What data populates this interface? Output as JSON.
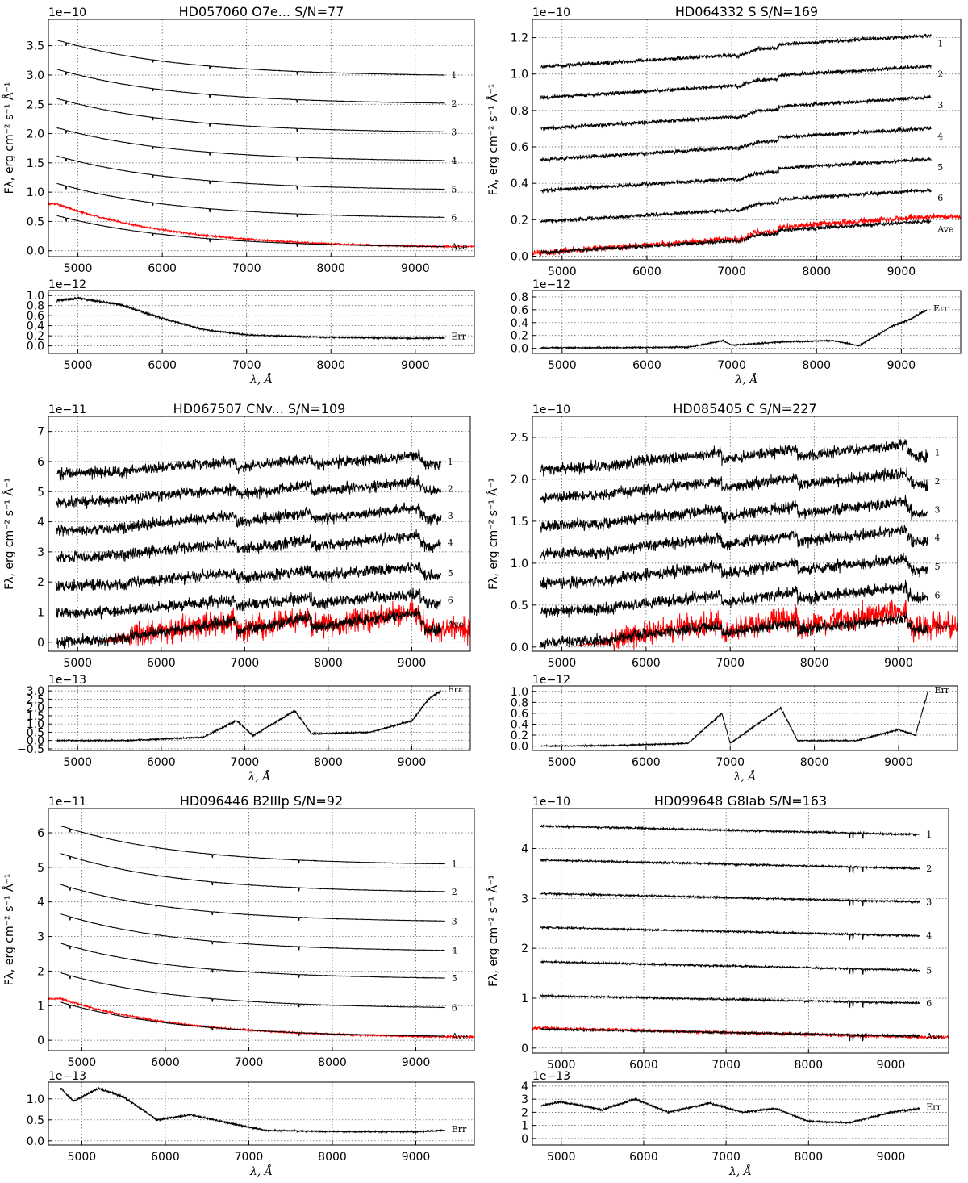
{
  "figure": {
    "xlabel": "λ, Å",
    "ylabel": "Fλ, erg cm⁻² s⁻¹ Å⁻¹"
  },
  "chart_data": [
    {
      "type": "line",
      "title": "HD057060  O7e...  S/N=77",
      "xlim": [
        4650,
        9700
      ],
      "x_ticks": [
        5000,
        6000,
        7000,
        8000,
        9000
      ],
      "main": {
        "multiplier": "1e−10",
        "ylim": [
          -0.1,
          3.95
        ],
        "y_ticks": [
          0.0,
          0.5,
          1.0,
          1.5,
          2.0,
          2.5,
          3.0,
          3.5
        ],
        "y_tick_labels": [
          "0.0",
          "0.5",
          "1.0",
          "1.5",
          "2.0",
          "2.5",
          "3.0",
          "3.5"
        ],
        "shape": "hot",
        "x_start": 4750,
        "x_end": 9350,
        "labels": [
          "1",
          "2",
          "3",
          "4",
          "5",
          "6",
          "Ave"
        ],
        "series_start": [
          3.6,
          3.1,
          2.6,
          2.1,
          1.62,
          1.15,
          0.6
        ],
        "series_end": [
          3.0,
          2.52,
          2.03,
          1.54,
          1.05,
          0.57,
          0.07
        ],
        "red": {
          "name": "Ave",
          "start": 0.8,
          "end": 0.07,
          "x_start": 4650,
          "x_end": 9700
        }
      },
      "err": {
        "multiplier": "1e−12",
        "label": "Err",
        "ylim": [
          -0.15,
          1.1
        ],
        "y_ticks": [
          0.0,
          0.2,
          0.4,
          0.6,
          0.8,
          1.0
        ],
        "y_tick_labels": [
          "0.0",
          "0.2",
          "0.4",
          "0.6",
          "0.8",
          "1.0"
        ],
        "x": [
          4750,
          5000,
          5500,
          6000,
          6500,
          7000,
          7500,
          8000,
          8500,
          9000,
          9350
        ],
        "values": [
          0.9,
          0.95,
          0.82,
          0.55,
          0.32,
          0.22,
          0.19,
          0.17,
          0.16,
          0.15,
          0.16
        ]
      }
    },
    {
      "type": "line",
      "title": "HD064332  S  S/N=169",
      "xlim": [
        4650,
        9700
      ],
      "x_ticks": [
        5000,
        6000,
        7000,
        8000,
        9000
      ],
      "main": {
        "multiplier": "1e−10",
        "ylim": [
          -0.02,
          1.3
        ],
        "y_ticks": [
          0.0,
          0.2,
          0.4,
          0.6,
          0.8,
          1.0,
          1.2
        ],
        "y_tick_labels": [
          "0.0",
          "0.2",
          "0.4",
          "0.6",
          "0.8",
          "1.0",
          "1.2"
        ],
        "shape": "cool",
        "x_start": 4750,
        "x_end": 9350,
        "labels": [
          "1",
          "2",
          "3",
          "4",
          "5",
          "6",
          "Ave"
        ],
        "series_start": [
          1.04,
          0.87,
          0.7,
          0.53,
          0.36,
          0.19,
          0.02
        ],
        "series_end": [
          1.17,
          1.0,
          0.83,
          0.66,
          0.49,
          0.32,
          0.15
        ],
        "red": {
          "name": "Ave",
          "start": 0.02,
          "end": 0.17,
          "x_start": 4650,
          "x_end": 9700
        }
      },
      "err": {
        "multiplier": "1e−12",
        "label": "Err",
        "ylim": [
          -0.08,
          0.9
        ],
        "y_ticks": [
          0.0,
          0.2,
          0.4,
          0.6,
          0.8
        ],
        "y_tick_labels": [
          "0.0",
          "0.2",
          "0.4",
          "0.6",
          "0.8"
        ],
        "x": [
          4750,
          5500,
          6500,
          6900,
          7000,
          7600,
          8200,
          8500,
          8900,
          9100,
          9300
        ],
        "values": [
          0.01,
          0.01,
          0.02,
          0.12,
          0.05,
          0.1,
          0.12,
          0.04,
          0.35,
          0.45,
          0.6
        ]
      }
    },
    {
      "type": "line",
      "title": "HD067507  CNv...  S/N=109",
      "xlim": [
        4650,
        9700
      ],
      "x_ticks": [
        5000,
        6000,
        7000,
        8000,
        9000
      ],
      "main": {
        "multiplier": "1e−11",
        "ylim": [
          -0.3,
          7.5
        ],
        "y_ticks": [
          0,
          1,
          2,
          3,
          4,
          5,
          6,
          7
        ],
        "y_tick_labels": [
          "0",
          "1",
          "2",
          "3",
          "4",
          "5",
          "6",
          "7"
        ],
        "shape": "carbon",
        "x_start": 4750,
        "x_end": 9350,
        "labels": [
          "1",
          "2",
          "3",
          "4",
          "5",
          "6",
          "Ave"
        ],
        "series_start": [
          5.6,
          4.65,
          3.7,
          2.8,
          1.85,
          0.95,
          0.0
        ],
        "series_end": [
          6.0,
          5.1,
          4.2,
          3.3,
          2.3,
          1.4,
          0.6
        ],
        "red": {
          "name": "Ave",
          "start": 0.0,
          "end": 0.6,
          "x_start": 5200,
          "x_end": 9700
        }
      },
      "err": {
        "multiplier": "1e−13",
        "label": "Err",
        "ylim": [
          -0.6,
          3.3
        ],
        "y_ticks": [
          -0.5,
          0.0,
          0.5,
          1.0,
          1.5,
          2.0,
          2.5,
          3.0
        ],
        "y_tick_labels": [
          "−0.5",
          "0.0",
          "0.5",
          "1.0",
          "1.5",
          "2.0",
          "2.5",
          "3.0"
        ],
        "x": [
          4750,
          5600,
          6500,
          6900,
          7100,
          7600,
          7800,
          8500,
          9000,
          9200,
          9350
        ],
        "values": [
          0.0,
          0.0,
          0.2,
          1.2,
          0.3,
          1.8,
          0.4,
          0.5,
          1.2,
          2.5,
          3.0
        ]
      }
    },
    {
      "type": "line",
      "title": "HD085405  C  S/N=227",
      "xlim": [
        4650,
        9700
      ],
      "x_ticks": [
        5000,
        6000,
        7000,
        8000,
        9000
      ],
      "main": {
        "multiplier": "1e−10",
        "ylim": [
          -0.05,
          2.75
        ],
        "y_ticks": [
          0.0,
          0.5,
          1.0,
          1.5,
          2.0,
          2.5
        ],
        "y_tick_labels": [
          "0.0",
          "0.5",
          "1.0",
          "1.5",
          "2.0",
          "2.5"
        ],
        "shape": "carbon",
        "x_start": 4750,
        "x_end": 9350,
        "labels": [
          "1",
          "2",
          "3",
          "4",
          "5",
          "6",
          "Ave"
        ],
        "series_start": [
          2.12,
          1.78,
          1.44,
          1.1,
          0.76,
          0.42,
          0.05
        ],
        "series_end": [
          2.32,
          1.98,
          1.64,
          1.3,
          0.96,
          0.62,
          0.25
        ],
        "red": {
          "name": "Ave",
          "start": 0.02,
          "end": 0.3,
          "x_start": 5200,
          "x_end": 9700
        }
      },
      "err": {
        "multiplier": "1e−12",
        "label": "Err",
        "ylim": [
          -0.08,
          1.1
        ],
        "y_ticks": [
          0.0,
          0.2,
          0.4,
          0.6,
          0.8,
          1.0
        ],
        "y_tick_labels": [
          "0.0",
          "0.2",
          "0.4",
          "0.6",
          "0.8",
          "1.0"
        ],
        "x": [
          4750,
          5600,
          6500,
          6900,
          7000,
          7600,
          7800,
          8500,
          9000,
          9200,
          9350
        ],
        "values": [
          0.0,
          0.01,
          0.05,
          0.6,
          0.05,
          0.7,
          0.1,
          0.1,
          0.3,
          0.2,
          1.0
        ]
      }
    },
    {
      "type": "line",
      "title": "HD096446  B2IIIp  S/N=92",
      "xlim": [
        4600,
        9700
      ],
      "x_ticks": [
        5000,
        6000,
        7000,
        8000,
        9000
      ],
      "main": {
        "multiplier": "1e−11",
        "ylim": [
          -0.3,
          6.7
        ],
        "y_ticks": [
          0,
          1,
          2,
          3,
          4,
          5,
          6
        ],
        "y_tick_labels": [
          "0",
          "1",
          "2",
          "3",
          "4",
          "5",
          "6"
        ],
        "shape": "hot",
        "x_start": 4750,
        "x_end": 9350,
        "labels": [
          "1",
          "2",
          "3",
          "4",
          "5",
          "6",
          "Ave"
        ],
        "series_start": [
          6.2,
          5.4,
          4.5,
          3.65,
          2.8,
          1.95,
          1.1
        ],
        "series_end": [
          5.1,
          4.3,
          3.45,
          2.6,
          1.8,
          0.95,
          0.12
        ],
        "red": {
          "name": "Ave",
          "start": 1.2,
          "end": 0.1,
          "x_start": 4600,
          "x_end": 9700
        }
      },
      "err": {
        "multiplier": "1e−13",
        "label": "Err",
        "ylim": [
          -0.1,
          1.4
        ],
        "y_ticks": [
          0.0,
          0.5,
          1.0
        ],
        "y_tick_labels": [
          "0.0",
          "0.5",
          "1.0"
        ],
        "x": [
          4750,
          4900,
          5200,
          5500,
          5900,
          6300,
          6700,
          7200,
          8000,
          9000,
          9350
        ],
        "values": [
          1.25,
          0.95,
          1.25,
          1.05,
          0.5,
          0.62,
          0.45,
          0.25,
          0.22,
          0.22,
          0.25
        ]
      }
    },
    {
      "type": "line",
      "title": "HD099648  G8Iab  S/N=163",
      "xlim": [
        4650,
        9700
      ],
      "x_ticks": [
        5000,
        6000,
        7000,
        8000,
        9000
      ],
      "main": {
        "multiplier": "1e−10",
        "ylim": [
          -0.1,
          4.8
        ],
        "y_ticks": [
          0,
          1,
          2,
          3,
          4
        ],
        "y_tick_labels": [
          "0",
          "1",
          "2",
          "3",
          "4"
        ],
        "shape": "flat",
        "x_start": 4750,
        "x_end": 9350,
        "labels": [
          "1",
          "2",
          "3",
          "4",
          "5",
          "6",
          "Ave"
        ],
        "series_start": [
          4.45,
          3.77,
          3.1,
          2.42,
          1.73,
          1.05,
          0.38
        ],
        "series_end": [
          4.28,
          3.6,
          2.93,
          2.25,
          1.56,
          0.9,
          0.24
        ],
        "red": {
          "name": "Ave",
          "start": 0.4,
          "end": 0.22,
          "x_start": 4650,
          "x_end": 9700
        }
      },
      "err": {
        "multiplier": "1e−13",
        "label": "Err",
        "ylim": [
          -0.5,
          4.3
        ],
        "y_ticks": [
          0,
          1,
          2,
          3,
          4
        ],
        "y_tick_labels": [
          "0",
          "1",
          "2",
          "3",
          "4"
        ],
        "x": [
          4750,
          5000,
          5500,
          5900,
          6300,
          6800,
          7200,
          7600,
          8000,
          8500,
          9000,
          9350
        ],
        "values": [
          2.5,
          2.8,
          2.2,
          3.0,
          2.0,
          2.7,
          2.0,
          2.3,
          1.3,
          1.2,
          2.0,
          2.3
        ]
      }
    }
  ]
}
